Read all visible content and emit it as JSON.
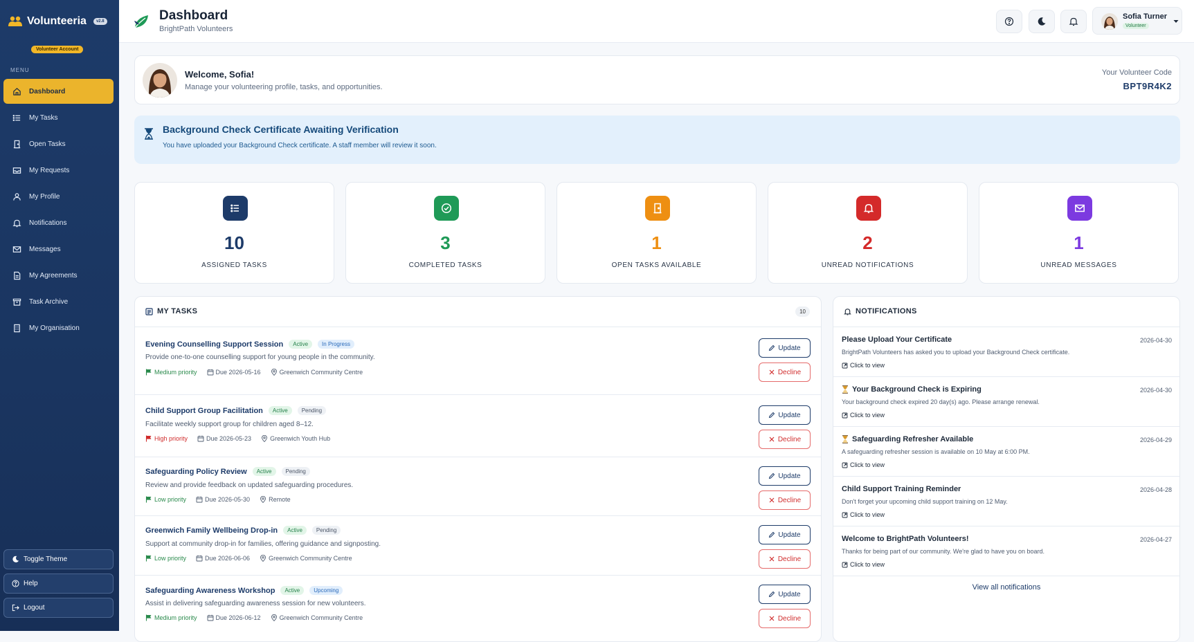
{
  "brand": {
    "name": "Volunteeria",
    "version": "v2.8",
    "account_badge": "Volunteer Account"
  },
  "sidebar": {
    "menu_label": "MENU",
    "items": [
      {
        "label": "Dashboard",
        "icon": "home-icon"
      },
      {
        "label": "My Tasks",
        "icon": "list-icon"
      },
      {
        "label": "Open Tasks",
        "icon": "door-icon"
      },
      {
        "label": "My Requests",
        "icon": "inbox-icon"
      },
      {
        "label": "My Profile",
        "icon": "user-icon"
      },
      {
        "label": "Notifications",
        "icon": "bell-icon"
      },
      {
        "label": "Messages",
        "icon": "envelope-icon"
      },
      {
        "label": "My Agreements",
        "icon": "document-icon"
      },
      {
        "label": "Task Archive",
        "icon": "archive-icon"
      },
      {
        "label": "My Organisation",
        "icon": "building-icon"
      }
    ],
    "bottom": {
      "toggle_theme": "Toggle Theme",
      "help": "Help",
      "logout": "Logout"
    }
  },
  "header": {
    "title": "Dashboard",
    "subtitle": "BrightPath Volunteers",
    "user": {
      "name": "Sofia Turner",
      "role": "Volunteer"
    }
  },
  "welcome": {
    "title": "Welcome, Sofia!",
    "subtitle": "Manage your volunteering profile, tasks, and opportunities.",
    "code_label": "Your Volunteer Code",
    "code": "BPT9R4K2"
  },
  "alert": {
    "title": "Background Check Certificate Awaiting Verification",
    "text": "You have uploaded your Background Check certificate. A staff member will review it soon."
  },
  "stats": [
    {
      "value": "10",
      "label": "ASSIGNED TASKS",
      "color": "#1d3b69",
      "icon": "list-icon"
    },
    {
      "value": "3",
      "label": "COMPLETED TASKS",
      "color": "#1f9a57",
      "icon": "check-circle-icon"
    },
    {
      "value": "1",
      "label": "OPEN TASKS AVAILABLE",
      "color": "#ee8f12",
      "icon": "door-icon"
    },
    {
      "value": "2",
      "label": "UNREAD NOTIFICATIONS",
      "color": "#d42a2a",
      "icon": "bell-icon"
    },
    {
      "value": "1",
      "label": "UNREAD MESSAGES",
      "color": "#7c3ae0",
      "icon": "envelope-icon"
    }
  ],
  "tasks": {
    "title": "MY TASKS",
    "count": "10",
    "update_label": "Update",
    "decline_label": "Decline",
    "items": [
      {
        "title": "Evening Counselling Support Session",
        "tags": [
          "Active",
          "In Progress"
        ],
        "desc": "Provide one-to-one counselling support for young people in the community.",
        "priority": "Medium priority",
        "due": "Due 2026-05-16",
        "location": "Greenwich Community Centre"
      },
      {
        "title": "Child Support Group Facilitation",
        "tags": [
          "Active",
          "Pending"
        ],
        "desc": "Facilitate weekly support group for children aged 8–12.",
        "priority": "High priority",
        "due": "Due 2026-05-23",
        "location": "Greenwich Youth Hub"
      },
      {
        "title": "Safeguarding Policy Review",
        "tags": [
          "Active",
          "Pending"
        ],
        "desc": "Review and provide feedback on updated safeguarding procedures.",
        "priority": "Low priority",
        "due": "Due 2026-05-30",
        "location": "Remote"
      },
      {
        "title": "Greenwich Family Wellbeing Drop-in",
        "tags": [
          "Active",
          "Pending"
        ],
        "desc": "Support at community drop-in for families, offering guidance and signposting.",
        "priority": "Low priority",
        "due": "Due 2026-06-06",
        "location": "Greenwich Community Centre"
      },
      {
        "title": "Safeguarding Awareness Workshop",
        "tags": [
          "Active",
          "Upcoming"
        ],
        "desc": "Assist in delivering safeguarding awareness session for new volunteers.",
        "priority": "Medium priority",
        "due": "Due 2026-06-12",
        "location": "Greenwich Community Centre"
      }
    ]
  },
  "notifications": {
    "title": "NOTIFICATIONS",
    "link_label": "Click to view",
    "view_all": "View all notifications",
    "items": [
      {
        "title": "Please Upload Your Certificate",
        "date": "2026-04-30",
        "text": "BrightPath Volunteers has asked you to upload your Background Check certificate.",
        "icon": ""
      },
      {
        "title": "Your Background Check is Expiring",
        "date": "2026-04-30",
        "text": "Your background check expired 20 day(s) ago. Please arrange renewal.",
        "icon": "hourglass-icon"
      },
      {
        "title": "Safeguarding Refresher Available",
        "date": "2026-04-29",
        "text": "A safeguarding refresher session is available on 10 May at 6:00 PM.",
        "icon": "hourglass-icon"
      },
      {
        "title": "Child Support Training Reminder",
        "date": "2026-04-28",
        "text": "Don't forget your upcoming child support training on 12 May.",
        "icon": ""
      },
      {
        "title": "Welcome to BrightPath Volunteers!",
        "date": "2026-04-27",
        "text": "Thanks for being part of our community. We're glad to have you on board.",
        "icon": ""
      }
    ]
  }
}
